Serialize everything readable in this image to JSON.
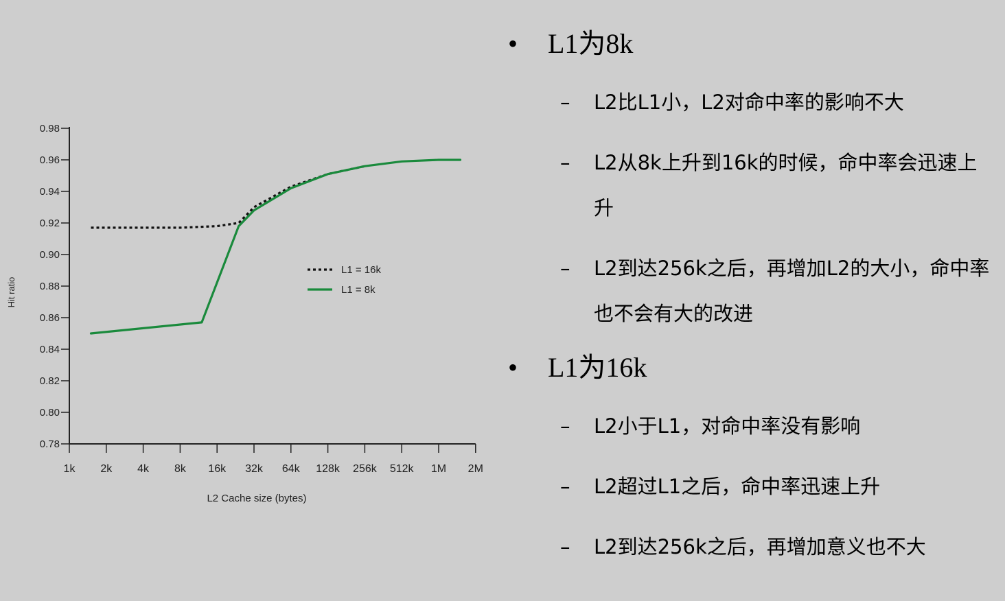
{
  "chart_data": {
    "type": "line",
    "title": "",
    "xlabel": "L2 Cache size (bytes)",
    "ylabel": "Hit ratio",
    "x_scale": "log2",
    "categories": [
      "1k",
      "2k",
      "4k",
      "8k",
      "16k",
      "32k",
      "64k",
      "128k",
      "256k",
      "512k",
      "1M",
      "2M"
    ],
    "yticks": [
      "0.78",
      "0.80",
      "0.82",
      "0.84",
      "0.86",
      "0.88",
      "0.90",
      "0.92",
      "0.94",
      "0.96",
      "0.98"
    ],
    "ylim": [
      0.78,
      0.98
    ],
    "grid": false,
    "legend_position": "center-right",
    "series": [
      {
        "name": "L1 = 16k",
        "style": "dotted",
        "color": "#111111",
        "x": [
          "1.5k",
          "4k",
          "8k",
          "16k",
          "24k",
          "32k",
          "64k",
          "128k",
          "256k"
        ],
        "values": [
          0.917,
          0.917,
          0.917,
          0.918,
          0.92,
          0.93,
          0.943,
          0.951,
          0.956
        ]
      },
      {
        "name": "L1 = 8k",
        "style": "solid",
        "color": "#1a8a3c",
        "x": [
          "1.5k",
          "12k",
          "24k",
          "32k",
          "64k",
          "128k",
          "256k",
          "512k",
          "1M",
          "1.5M"
        ],
        "values": [
          0.85,
          0.857,
          0.918,
          0.928,
          0.942,
          0.951,
          0.956,
          0.959,
          0.96,
          0.96
        ]
      }
    ]
  },
  "text_panel": {
    "sections": [
      {
        "marker": "•",
        "heading": "L1为8k",
        "items": [
          {
            "marker": "–",
            "text": "L2比L1小，L2对命中率的影响不大"
          },
          {
            "marker": "–",
            "text": "L2从8k上升到16k的时候，命中率会迅速上升"
          },
          {
            "marker": "–",
            "text": "L2到达256k之后，再增加L2的大小，命中率也不会有大的改进"
          }
        ]
      },
      {
        "marker": "•",
        "heading": "L1为16k",
        "items": [
          {
            "marker": "–",
            "text": "L2小于L1，对命中率没有影响"
          },
          {
            "marker": "–",
            "text": "L2超过L1之后，命中率迅速上升"
          },
          {
            "marker": "–",
            "text": "L2到达256k之后，再增加意义也不大"
          }
        ]
      }
    ]
  }
}
